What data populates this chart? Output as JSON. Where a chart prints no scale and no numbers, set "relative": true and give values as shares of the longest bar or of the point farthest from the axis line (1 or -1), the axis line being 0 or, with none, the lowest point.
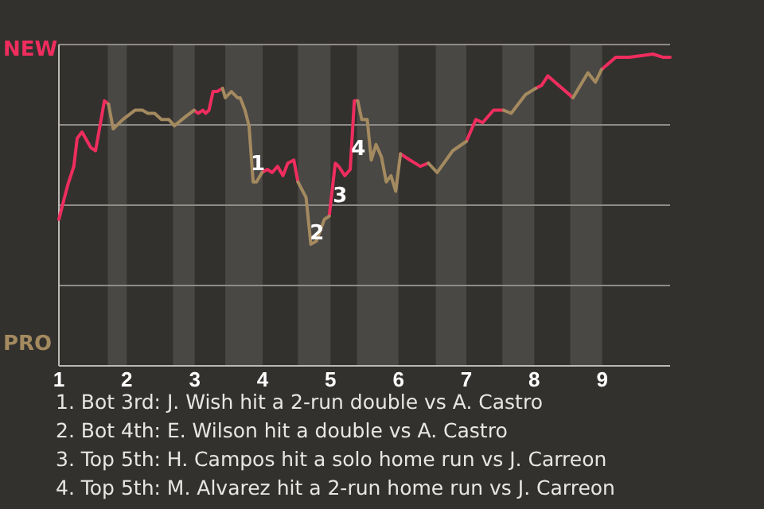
{
  "chart_data": {
    "type": "line",
    "relative": true,
    "grid": "y",
    "line_style": "solid",
    "marker": "none",
    "x": [
      1.0,
      1.13,
      1.22,
      1.27,
      1.34,
      1.47,
      1.54,
      1.67,
      1.73,
      1.8,
      1.94,
      2.12,
      2.23,
      2.31,
      2.41,
      2.51,
      2.62,
      2.7,
      2.87,
      2.99,
      3.05,
      3.12,
      3.16,
      3.21,
      3.27,
      3.33,
      3.41,
      3.45,
      3.54,
      3.63,
      3.67,
      3.74,
      3.8,
      3.86,
      3.91,
      3.99,
      4.07,
      4.14,
      4.22,
      4.3,
      4.37,
      4.46,
      4.52,
      4.64,
      4.71,
      4.79,
      4.91,
      4.98,
      5.07,
      5.12,
      5.21,
      5.29,
      5.35,
      5.4,
      5.46,
      5.54,
      5.6,
      5.67,
      5.75,
      5.82,
      5.89,
      5.96,
      6.03,
      6.17,
      6.32,
      6.44,
      6.57,
      6.8,
      7.0,
      7.14,
      7.24,
      7.4,
      7.55,
      7.66,
      7.87,
      8.02,
      8.11,
      8.2,
      8.57,
      8.79,
      8.9,
      8.99,
      9.2,
      9.4,
      9.75,
      9.89,
      10
    ],
    "xlim": [
      1,
      10
    ],
    "xticks": [
      1,
      2,
      3,
      4,
      5,
      6,
      7,
      8,
      9
    ],
    "series": [
      {
        "name": "NEW",
        "color": "#ef2d5e",
        "values": [
          0.47,
          0.58,
          0.64,
          0.73,
          0.75,
          0.7,
          0.69,
          0.85,
          0.84,
          null,
          null,
          null,
          null,
          null,
          null,
          null,
          null,
          null,
          null,
          0.82,
          0.81,
          0.82,
          0.81,
          0.82,
          0.88,
          0.88,
          0.89,
          null,
          null,
          null,
          null,
          null,
          null,
          null,
          null,
          0.62,
          0.63,
          0.62,
          0.64,
          0.61,
          0.65,
          0.66,
          0.59,
          null,
          null,
          null,
          null,
          0.48,
          0.65,
          0.64,
          0.61,
          0.63,
          0.85,
          0.85,
          null,
          null,
          null,
          null,
          null,
          null,
          null,
          null,
          0.68,
          0.66,
          0.64,
          0.65,
          null,
          null,
          0.72,
          0.79,
          0.78,
          0.82,
          0.82,
          null,
          null,
          0.89,
          0.9,
          0.93,
          0.86,
          null,
          null,
          0.95,
          0.99,
          0.99,
          1.0,
          0.99,
          0.99
        ]
      },
      {
        "name": "PRO",
        "color": "#a48a5f",
        "values": [
          null,
          null,
          null,
          null,
          null,
          null,
          null,
          null,
          0.84,
          0.76,
          0.79,
          0.82,
          0.82,
          0.81,
          0.81,
          0.79,
          0.79,
          0.77,
          0.8,
          0.82,
          null,
          null,
          null,
          null,
          null,
          null,
          0.89,
          0.86,
          0.88,
          0.86,
          0.86,
          0.82,
          0.77,
          0.59,
          0.59,
          0.62,
          null,
          null,
          null,
          null,
          null,
          null,
          0.59,
          0.54,
          0.39,
          0.4,
          0.47,
          0.48,
          null,
          null,
          null,
          null,
          null,
          0.85,
          0.79,
          0.79,
          0.66,
          0.71,
          0.67,
          0.59,
          0.61,
          0.56,
          0.68,
          null,
          null,
          0.65,
          0.62,
          0.69,
          0.72,
          null,
          null,
          null,
          0.82,
          0.81,
          0.87,
          0.89,
          null,
          null,
          0.86,
          0.94,
          0.91,
          0.95,
          null,
          null,
          null,
          null,
          null
        ]
      }
    ],
    "bands": [
      {
        "axis": "x",
        "from": 1.72,
        "to": 2,
        "color": "#4a4845"
      },
      {
        "axis": "x",
        "from": 2.68,
        "to": 3,
        "color": "#4a4845"
      },
      {
        "axis": "x",
        "from": 3.45,
        "to": 4,
        "color": "#4a4845"
      },
      {
        "axis": "x",
        "from": 4.52,
        "to": 5,
        "color": "#4a4845"
      },
      {
        "axis": "x",
        "from": 5.39,
        "to": 6,
        "color": "#4a4845"
      },
      {
        "axis": "x",
        "from": 6.55,
        "to": 7,
        "color": "#4a4845"
      },
      {
        "axis": "x",
        "from": 7.53,
        "to": 8,
        "color": "#4a4845"
      },
      {
        "axis": "x",
        "from": 8.53,
        "to": 9,
        "color": "#4a4845"
      }
    ],
    "annotations": [
      {
        "text": "1",
        "x": 3.93,
        "y": 0.65
      },
      {
        "text": "2",
        "x": 4.8,
        "y": 0.43
      },
      {
        "text": "3",
        "x": 5.14,
        "y": 0.55
      },
      {
        "text": "4",
        "x": 5.41,
        "y": 0.7
      },
      "1. Bot 3rd: J. Wish hit a 2-run double vs A. Castro",
      "2. Bot 4th: E. Wilson hit a double vs A. Castro",
      "3. Top 5th: H. Campos hit a solo home run vs J. Carreon",
      "4. Top 5th: M. Alvarez hit a 2-run home run vs J. Carreon"
    ]
  }
}
